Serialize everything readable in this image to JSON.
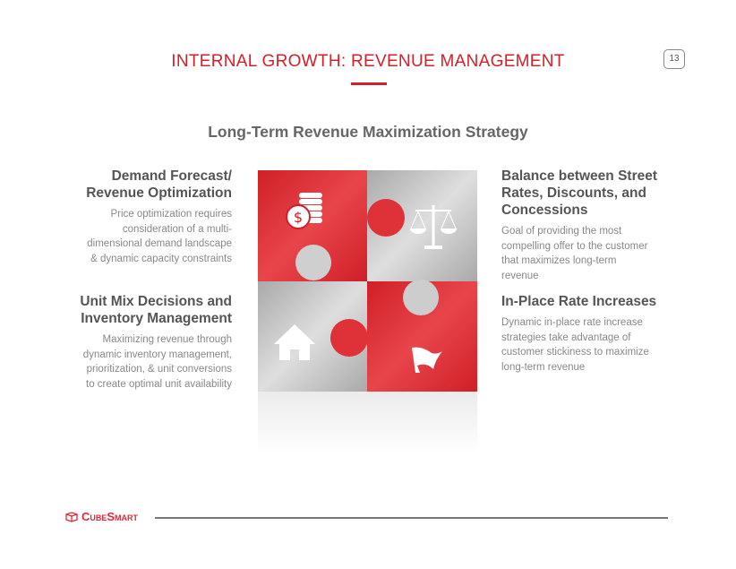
{
  "header": {
    "title": "INTERNAL GROWTH: REVENUE MANAGEMENT",
    "page_number": "13"
  },
  "subtitle": "Long-Term Revenue Maximization Strategy",
  "left": [
    {
      "heading_lines": [
        "Demand Forecast/",
        "Revenue Optimization"
      ],
      "body_lines": [
        "Price optimization requires",
        "consideration of a multi-",
        "dimensional demand landscape",
        "& dynamic capacity constraints"
      ]
    },
    {
      "heading_lines": [
        "Unit Mix Decisions and",
        "Inventory Management"
      ],
      "body_lines": [
        "Maximizing revenue through",
        "dynamic inventory management,",
        "prioritization, & unit conversions",
        "to create optimal unit availability"
      ]
    }
  ],
  "right": [
    {
      "heading_lines": [
        "Balance between Street",
        "Rates, Discounts, and",
        "Concessions"
      ],
      "body_lines": [
        "Goal of providing the most",
        "compelling offer to the customer",
        "that maximizes long-term",
        "revenue"
      ]
    },
    {
      "heading_lines": [
        "In-Place Rate Increases"
      ],
      "body_lines": [
        "Dynamic in-place rate increase",
        "strategies take advantage of",
        "customer stickiness to maximize",
        "long-term revenue"
      ]
    }
  ],
  "puzzle": {
    "icons": [
      "coins-dollar-icon",
      "scale-icon",
      "house-icon",
      "flag-icon"
    ],
    "colors": {
      "red": "#d9262e",
      "gray": "#c4c4c4"
    }
  },
  "footer": {
    "logo_text": "CubeSmart"
  },
  "colors": {
    "accent": "#d4202a",
    "text": "#555555",
    "muted": "#888888"
  }
}
